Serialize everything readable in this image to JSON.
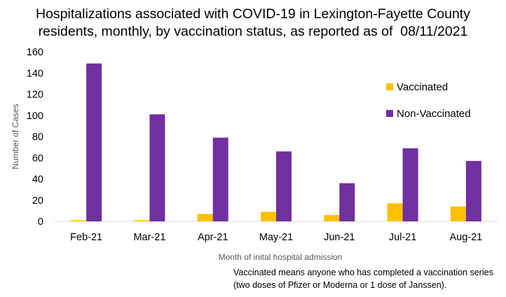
{
  "chart_data": {
    "type": "bar",
    "title_lines": [
      "Hospitalizations associated with COVID-19 in Lexington-Fayette County",
      "residents, monthly, by vaccination status, as reported as of  08/11/2021"
    ],
    "categories": [
      "Feb-21",
      "Mar-21",
      "Apr-21",
      "May-21",
      "Jun-21",
      "Jul-21",
      "Aug-21"
    ],
    "series": [
      {
        "name": "Vaccinated",
        "color": "#FFC000",
        "values": [
          1,
          1,
          7,
          9,
          6,
          17,
          14
        ]
      },
      {
        "name": "Non-Vaccinated",
        "color": "#7030A0",
        "values": [
          149,
          101,
          79,
          66,
          36,
          69,
          57
        ]
      }
    ],
    "xlabel": "Month of inital hospital admission",
    "ylabel": "Number of Cases",
    "ylim": [
      0,
      160
    ],
    "yticks": [
      0,
      20,
      40,
      60,
      80,
      100,
      120,
      140,
      160
    ],
    "grid": false,
    "legend_position": "right"
  },
  "note_lines": [
    "Vaccinated means anyone who has completed a vaccination series",
    "(two doses of Pfizer or Moderna or 1 dose of Janssen)."
  ]
}
